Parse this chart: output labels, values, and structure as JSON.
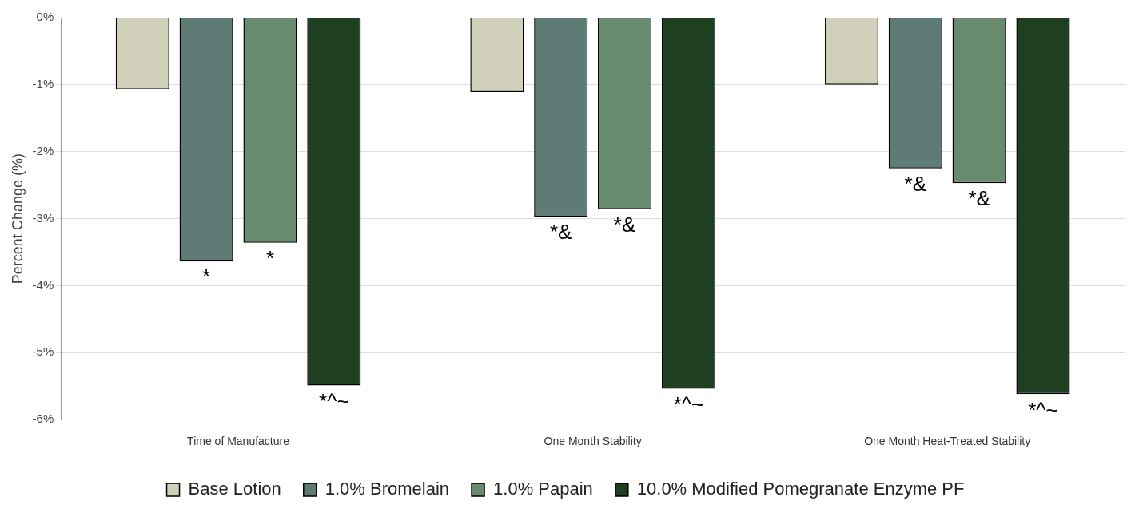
{
  "chart_data": {
    "type": "bar",
    "categories": [
      "Time of Manufacture",
      "One Month Stability",
      "One Month Heat-Treated Stability"
    ],
    "ylabel": "Percent Change (%)",
    "ylim": [
      -6,
      0
    ],
    "yticks": [
      {
        "value": 0,
        "label": "0%"
      },
      {
        "value": -1,
        "label": "-1%"
      },
      {
        "value": -2,
        "label": "-2%"
      },
      {
        "value": -3,
        "label": "-3%"
      },
      {
        "value": -4,
        "label": "-4%"
      },
      {
        "value": -5,
        "label": "-5%"
      },
      {
        "value": -6,
        "label": "-6%"
      }
    ],
    "grid": "y",
    "legend": "bottom",
    "series": [
      {
        "name": "Base Lotion",
        "color": "#d1d1bb",
        "values": [
          -1.07,
          -1.11,
          -1.0
        ]
      },
      {
        "name": "1.0% Bromelain",
        "color": "#5f7b75",
        "values": [
          -3.64,
          -2.97,
          -2.25
        ],
        "value_labels": [
          "*",
          "*&",
          "*&"
        ]
      },
      {
        "name": "1.0% Papain",
        "color": "#688a6e",
        "values": [
          -3.36,
          -2.86,
          -2.47
        ],
        "value_labels": [
          "*",
          "*&",
          "*&"
        ]
      },
      {
        "name": "10.0% Modified Pomegranate Enzyme PF",
        "color": "#1f4020",
        "values": [
          -5.49,
          -5.54,
          -5.62
        ],
        "value_labels": [
          "*^~",
          "*^~",
          "*^~"
        ]
      }
    ]
  }
}
